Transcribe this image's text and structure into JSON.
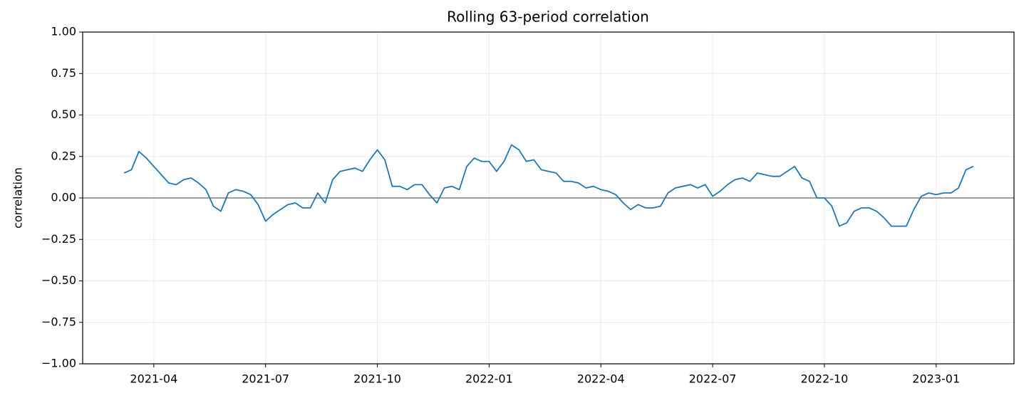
{
  "chart_data": {
    "type": "line",
    "title": "Rolling 63-period correlation",
    "y_label": "correlation",
    "x": [
      2.2,
      2.4,
      2.6,
      2.8,
      3.0,
      3.2,
      3.4,
      3.6,
      3.8,
      4.0,
      4.2,
      4.4,
      4.6,
      4.8,
      5.0,
      5.2,
      5.4,
      5.6,
      5.8,
      6.0,
      6.2,
      6.4,
      6.6,
      6.8,
      7.0,
      7.2,
      7.4,
      7.6,
      7.8,
      8.0,
      8.2,
      8.4,
      8.6,
      8.8,
      9.0,
      9.2,
      9.4,
      9.6,
      9.8,
      10.0,
      10.2,
      10.4,
      10.6,
      10.8,
      11.0,
      11.2,
      11.4,
      11.6,
      11.8,
      12.0,
      12.2,
      12.4,
      12.6,
      12.8,
      13.0,
      13.2,
      13.4,
      13.6,
      13.8,
      14.0,
      14.2,
      14.4,
      14.6,
      14.8,
      15.0,
      15.2,
      15.4,
      15.6,
      15.8,
      16.0,
      16.2,
      16.4,
      16.6,
      16.8,
      17.0,
      17.2,
      17.4,
      17.6,
      17.8,
      18.0,
      18.2,
      18.4,
      18.6,
      18.8,
      19.0,
      19.2,
      19.4,
      19.6,
      19.8,
      20.0,
      20.2,
      20.4,
      20.6,
      20.8,
      21.0,
      21.2,
      21.4,
      21.6,
      21.8,
      22.0,
      22.2,
      22.4,
      22.6,
      22.8,
      23.0,
      23.2,
      23.4,
      23.6,
      23.8,
      24.0,
      24.2,
      24.4,
      24.6,
      24.8,
      25.0
    ],
    "series": [
      {
        "color": "#1f77b4",
        "values": [
          0.15,
          0.17,
          0.28,
          0.24,
          0.19,
          0.14,
          0.09,
          0.08,
          0.11,
          0.12,
          0.09,
          0.05,
          -0.05,
          -0.08,
          0.03,
          0.05,
          0.04,
          0.02,
          -0.04,
          -0.14,
          -0.1,
          -0.07,
          -0.04,
          -0.03,
          -0.06,
          -0.06,
          0.03,
          -0.03,
          0.11,
          0.16,
          0.17,
          0.18,
          0.16,
          0.23,
          0.29,
          0.23,
          0.07,
          0.07,
          0.05,
          0.08,
          0.08,
          0.02,
          -0.03,
          0.06,
          0.07,
          0.05,
          0.19,
          0.24,
          0.22,
          0.22,
          0.16,
          0.22,
          0.32,
          0.29,
          0.22,
          0.23,
          0.17,
          0.16,
          0.15,
          0.1,
          0.1,
          0.09,
          0.06,
          0.07,
          0.05,
          0.04,
          0.02,
          -0.03,
          -0.07,
          -0.04,
          -0.06,
          -0.06,
          -0.05,
          0.03,
          0.06,
          0.07,
          0.08,
          0.06,
          0.08,
          0.01,
          0.04,
          0.08,
          0.11,
          0.12,
          0.1,
          0.15,
          0.14,
          0.13,
          0.13,
          0.16,
          0.19,
          0.12,
          0.1,
          0.0,
          0.0,
          -0.05,
          -0.17,
          -0.15,
          -0.08,
          -0.06,
          -0.06,
          -0.08,
          -0.12,
          -0.17,
          -0.17,
          -0.17,
          -0.07,
          0.01,
          0.03,
          0.02,
          0.03,
          0.03,
          0.06,
          0.17,
          0.19
        ]
      }
    ],
    "xlim": [
      1.09,
      26.09
    ],
    "xticks": [
      {
        "value": 3,
        "label": "2021-04"
      },
      {
        "value": 6,
        "label": "2021-07"
      },
      {
        "value": 9,
        "label": "2021-10"
      },
      {
        "value": 12,
        "label": "2022-01"
      },
      {
        "value": 15,
        "label": "2022-04"
      },
      {
        "value": 18,
        "label": "2022-07"
      },
      {
        "value": 21,
        "label": "2022-10"
      },
      {
        "value": 24,
        "label": "2023-01"
      }
    ],
    "ylim": [
      -1,
      1
    ],
    "yticks": [
      {
        "value": -1,
        "label": "−1.00"
      },
      {
        "value": -0.75,
        "label": "−0.75"
      },
      {
        "value": -0.5,
        "label": "−0.50"
      },
      {
        "value": -0.25,
        "label": "−0.25"
      },
      {
        "value": 0,
        "label": "0.00"
      },
      {
        "value": 0.25,
        "label": "0.25"
      },
      {
        "value": 0.5,
        "label": "0.50"
      },
      {
        "value": 0.75,
        "label": "0.75"
      },
      {
        "value": 1,
        "label": "1.00"
      }
    ],
    "grid": true,
    "reference_line": 0
  }
}
